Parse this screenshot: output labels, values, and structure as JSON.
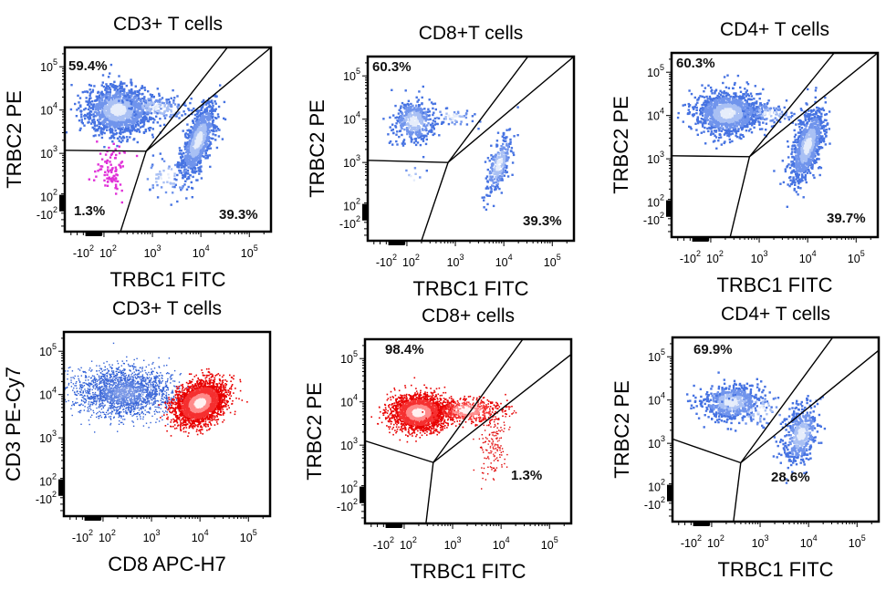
{
  "chart_data": [
    {
      "type": "scatter",
      "title": "CD3+ T cells",
      "xlabel": "TRBC1 FITC",
      "ylabel_lines": [
        "TRBC2 PE"
      ],
      "scale": "biexponential",
      "xticks": [
        {
          "base": "-10",
          "exp": "2",
          "value": -2
        },
        {
          "base": "10",
          "exp": "2",
          "value": 2
        },
        {
          "base": "10",
          "exp": "3",
          "value": 3
        },
        {
          "base": "10",
          "exp": "4",
          "value": 4
        },
        {
          "base": "10",
          "exp": "5",
          "value": 5
        }
      ],
      "yticks": [
        {
          "base": "-10",
          "exp": "2",
          "value": -2
        },
        {
          "base": "10",
          "exp": "2",
          "value": 2
        },
        {
          "base": "10",
          "exp": "3",
          "value": 3
        },
        {
          "base": "10",
          "exp": "4",
          "value": 4
        },
        {
          "base": "10",
          "exp": "5",
          "value": 5
        }
      ],
      "gate_labels": [
        {
          "text": "59.4%",
          "region": "TRBC2+"
        },
        {
          "text": "1.3%",
          "region": "double-negative"
        },
        {
          "text": "39.3%",
          "region": "TRBC1+"
        }
      ],
      "gates": [
        [
          [
            1.19,
            3.07
          ],
          [
            2.87,
            3.05
          ]
        ],
        [
          [
            2.87,
            3.05
          ],
          [
            2.34,
            1.19
          ]
        ],
        [
          [
            2.87,
            3.05
          ],
          [
            4.55,
            5.45
          ]
        ],
        [
          [
            2.87,
            3.05
          ],
          [
            5.45,
            5.45
          ]
        ]
      ],
      "populations": [
        {
          "x": 2.3,
          "y": 4.0,
          "sx": 0.33,
          "sy": 0.28,
          "rho": 0,
          "n": 1400,
          "color": "blue"
        },
        {
          "x": 3.1,
          "y": 4.05,
          "sx": 0.35,
          "sy": 0.15,
          "rho": -0.3,
          "n": 180,
          "color": "blue"
        },
        {
          "x": 3.95,
          "y": 3.3,
          "sx": 0.18,
          "sy": 0.42,
          "rho": 0.65,
          "n": 1000,
          "color": "blue"
        },
        {
          "x": 3.3,
          "y": 2.45,
          "sx": 0.3,
          "sy": 0.25,
          "rho": 0,
          "n": 60,
          "color": "blue"
        },
        {
          "x": 2.15,
          "y": 2.65,
          "sx": 0.18,
          "sy": 0.28,
          "rho": 0,
          "n": 90,
          "color": "magenta"
        }
      ]
    },
    {
      "type": "scatter",
      "title": "CD8+T cells",
      "xlabel": "TRBC1 FITC",
      "ylabel_lines": [
        "TRBC2 PE"
      ],
      "scale": "biexponential",
      "xticks": [
        {
          "base": "-10",
          "exp": "2",
          "value": -2
        },
        {
          "base": "10",
          "exp": "2",
          "value": 2
        },
        {
          "base": "10",
          "exp": "3",
          "value": 3
        },
        {
          "base": "10",
          "exp": "4",
          "value": 4
        },
        {
          "base": "10",
          "exp": "5",
          "value": 5
        }
      ],
      "yticks": [
        {
          "base": "-10",
          "exp": "2",
          "value": -2
        },
        {
          "base": "10",
          "exp": "2",
          "value": 2
        },
        {
          "base": "10",
          "exp": "3",
          "value": 3
        },
        {
          "base": "10",
          "exp": "4",
          "value": 4
        },
        {
          "base": "10",
          "exp": "5",
          "value": 5
        }
      ],
      "gate_labels": [
        {
          "text": "60.3%",
          "region": "TRBC2+"
        },
        {
          "text": "39.3%",
          "region": "TRBC1+"
        }
      ],
      "gates": [
        [
          [
            1.19,
            3.05
          ],
          [
            2.85,
            3.0
          ]
        ],
        [
          [
            2.85,
            3.0
          ],
          [
            2.3,
            1.19
          ]
        ],
        [
          [
            2.85,
            3.0
          ],
          [
            4.5,
            5.45
          ]
        ],
        [
          [
            2.85,
            3.0
          ],
          [
            5.45,
            5.45
          ]
        ]
      ],
      "populations": [
        {
          "x": 2.15,
          "y": 3.95,
          "sx": 0.2,
          "sy": 0.25,
          "rho": 0,
          "n": 420,
          "color": "blue"
        },
        {
          "x": 2.95,
          "y": 4.05,
          "sx": 0.25,
          "sy": 0.12,
          "rho": -0.3,
          "n": 50,
          "color": "blue"
        },
        {
          "x": 3.9,
          "y": 2.95,
          "sx": 0.14,
          "sy": 0.35,
          "rho": 0.6,
          "n": 260,
          "color": "blue"
        },
        {
          "x": 2.1,
          "y": 2.6,
          "sx": 0.15,
          "sy": 0.2,
          "rho": 0,
          "n": 8,
          "color": "blue"
        }
      ]
    },
    {
      "type": "scatter",
      "title": "CD4+ T cells",
      "xlabel": "TRBC1 FITC",
      "ylabel_lines": [
        "TRBC2 PE"
      ],
      "scale": "biexponential",
      "xticks": [
        {
          "base": "-10",
          "exp": "2",
          "value": -2
        },
        {
          "base": "10",
          "exp": "2",
          "value": 2
        },
        {
          "base": "10",
          "exp": "3",
          "value": 3
        },
        {
          "base": "10",
          "exp": "4",
          "value": 4
        },
        {
          "base": "10",
          "exp": "5",
          "value": 5
        }
      ],
      "yticks": [
        {
          "base": "-10",
          "exp": "2",
          "value": -2
        },
        {
          "base": "10",
          "exp": "2",
          "value": 2
        },
        {
          "base": "10",
          "exp": "3",
          "value": 3
        },
        {
          "base": "10",
          "exp": "4",
          "value": 4
        },
        {
          "base": "10",
          "exp": "5",
          "value": 5
        }
      ],
      "gate_labels": [
        {
          "text": "60.3%",
          "region": "TRBC2+"
        },
        {
          "text": "39.7%",
          "region": "TRBC1+"
        }
      ],
      "gates": [
        [
          [
            1.19,
            3.07
          ],
          [
            2.8,
            3.05
          ]
        ],
        [
          [
            2.8,
            3.05
          ],
          [
            2.4,
            1.19
          ]
        ],
        [
          [
            2.8,
            3.05
          ],
          [
            4.55,
            5.45
          ]
        ],
        [
          [
            2.8,
            3.05
          ],
          [
            5.45,
            5.45
          ]
        ]
      ],
      "populations": [
        {
          "x": 2.35,
          "y": 4.05,
          "sx": 0.33,
          "sy": 0.24,
          "rho": 0,
          "n": 1200,
          "color": "blue"
        },
        {
          "x": 3.2,
          "y": 4.05,
          "sx": 0.3,
          "sy": 0.12,
          "rho": -0.3,
          "n": 120,
          "color": "blue"
        },
        {
          "x": 4.0,
          "y": 3.3,
          "sx": 0.17,
          "sy": 0.43,
          "rho": 0.6,
          "n": 900,
          "color": "blue"
        }
      ]
    },
    {
      "type": "scatter",
      "title": "CD3+ T cells",
      "xlabel": "CD8 APC-H7",
      "ylabel_lines": [
        "CD3 PE-",
        "Cy7"
      ],
      "scale": "biexponential",
      "xticks": [
        {
          "base": "-10",
          "exp": "2",
          "value": -2
        },
        {
          "base": "10",
          "exp": "2",
          "value": 2
        },
        {
          "base": "10",
          "exp": "3",
          "value": 3
        },
        {
          "base": "10",
          "exp": "4",
          "value": 4
        },
        {
          "base": "10",
          "exp": "5",
          "value": 5
        }
      ],
      "yticks": [
        {
          "base": "-10",
          "exp": "2",
          "value": -2
        },
        {
          "base": "10",
          "exp": "2",
          "value": 2
        },
        {
          "base": "10",
          "exp": "3",
          "value": 3
        },
        {
          "base": "10",
          "exp": "4",
          "value": 4
        },
        {
          "base": "10",
          "exp": "5",
          "value": 5
        }
      ],
      "gate_labels": [],
      "gates": [],
      "populations": [
        {
          "x": 2.45,
          "y": 4.05,
          "sx": 0.5,
          "sy": 0.28,
          "rho": 0,
          "n": 2200,
          "color": "blue-dots"
        },
        {
          "x": 4.0,
          "y": 3.8,
          "sx": 0.25,
          "sy": 0.24,
          "rho": 0.3,
          "n": 3500,
          "color": "red"
        }
      ]
    },
    {
      "type": "scatter",
      "title": "CD8+ cells",
      "xlabel": "TRBC1 FITC",
      "ylabel_lines": [
        "TRBC2 PE"
      ],
      "scale": "biexponential",
      "xticks": [
        {
          "base": "-10",
          "exp": "2",
          "value": -2
        },
        {
          "base": "10",
          "exp": "2",
          "value": 2
        },
        {
          "base": "10",
          "exp": "3",
          "value": 3
        },
        {
          "base": "10",
          "exp": "4",
          "value": 4
        },
        {
          "base": "10",
          "exp": "5",
          "value": 5
        }
      ],
      "yticks": [
        {
          "base": "-10",
          "exp": "2",
          "value": -2
        },
        {
          "base": "10",
          "exp": "2",
          "value": 2
        },
        {
          "base": "10",
          "exp": "3",
          "value": 3
        },
        {
          "base": "10",
          "exp": "4",
          "value": 4
        },
        {
          "base": "10",
          "exp": "5",
          "value": 5
        }
      ],
      "gate_labels": [
        {
          "text": "98.4%",
          "region": "TRBC2+"
        },
        {
          "text": "1.3%",
          "region": "TRBC1+"
        }
      ],
      "gates": [
        [
          [
            1.19,
            3.1
          ],
          [
            2.6,
            2.6
          ]
        ],
        [
          [
            2.6,
            2.6
          ],
          [
            2.45,
            1.19
          ]
        ],
        [
          [
            2.6,
            2.6
          ],
          [
            4.45,
            5.45
          ]
        ],
        [
          [
            2.6,
            2.6
          ],
          [
            5.45,
            5.1
          ]
        ]
      ],
      "populations": [
        {
          "x": 2.3,
          "y": 3.75,
          "sx": 0.28,
          "sy": 0.2,
          "rho": 0,
          "n": 2800,
          "color": "red"
        },
        {
          "x": 3.3,
          "y": 3.8,
          "sx": 0.35,
          "sy": 0.14,
          "rho": 0,
          "n": 600,
          "color": "red"
        },
        {
          "x": 3.85,
          "y": 2.95,
          "sx": 0.15,
          "sy": 0.35,
          "rho": 0.3,
          "n": 160,
          "color": "red-dots"
        }
      ]
    },
    {
      "type": "scatter",
      "title": "CD4+ T cells",
      "xlabel": "TRBC1 FITC",
      "ylabel_lines": [
        "TRBC2 PE"
      ],
      "scale": "biexponential",
      "xticks": [
        {
          "base": "-10",
          "exp": "2",
          "value": -2
        },
        {
          "base": "10",
          "exp": "2",
          "value": 2
        },
        {
          "base": "10",
          "exp": "3",
          "value": 3
        },
        {
          "base": "10",
          "exp": "4",
          "value": 4
        },
        {
          "base": "10",
          "exp": "5",
          "value": 5
        }
      ],
      "yticks": [
        {
          "base": "-10",
          "exp": "2",
          "value": -2
        },
        {
          "base": "10",
          "exp": "2",
          "value": 2
        },
        {
          "base": "10",
          "exp": "3",
          "value": 3
        },
        {
          "base": "10",
          "exp": "4",
          "value": 4
        },
        {
          "base": "10",
          "exp": "5",
          "value": 5
        }
      ],
      "gate_labels": [
        {
          "text": "69.9%",
          "region": "TRBC2+"
        },
        {
          "text": "28.6%",
          "region": "TRBC1+"
        }
      ],
      "gates": [
        [
          [
            1.19,
            3.1
          ],
          [
            2.6,
            2.55
          ]
        ],
        [
          [
            2.6,
            2.55
          ],
          [
            2.45,
            1.19
          ]
        ],
        [
          [
            2.6,
            2.55
          ],
          [
            4.5,
            5.45
          ]
        ],
        [
          [
            2.6,
            2.55
          ],
          [
            5.45,
            5.15
          ]
        ]
      ],
      "populations": [
        {
          "x": 2.4,
          "y": 3.95,
          "sx": 0.3,
          "sy": 0.2,
          "rho": 0,
          "n": 650,
          "color": "blue"
        },
        {
          "x": 2.9,
          "y": 3.8,
          "sx": 0.4,
          "sy": 0.25,
          "rho": 0,
          "n": 80,
          "color": "blue"
        },
        {
          "x": 3.85,
          "y": 3.2,
          "sx": 0.17,
          "sy": 0.33,
          "rho": 0.3,
          "n": 480,
          "color": "blue"
        }
      ]
    }
  ]
}
